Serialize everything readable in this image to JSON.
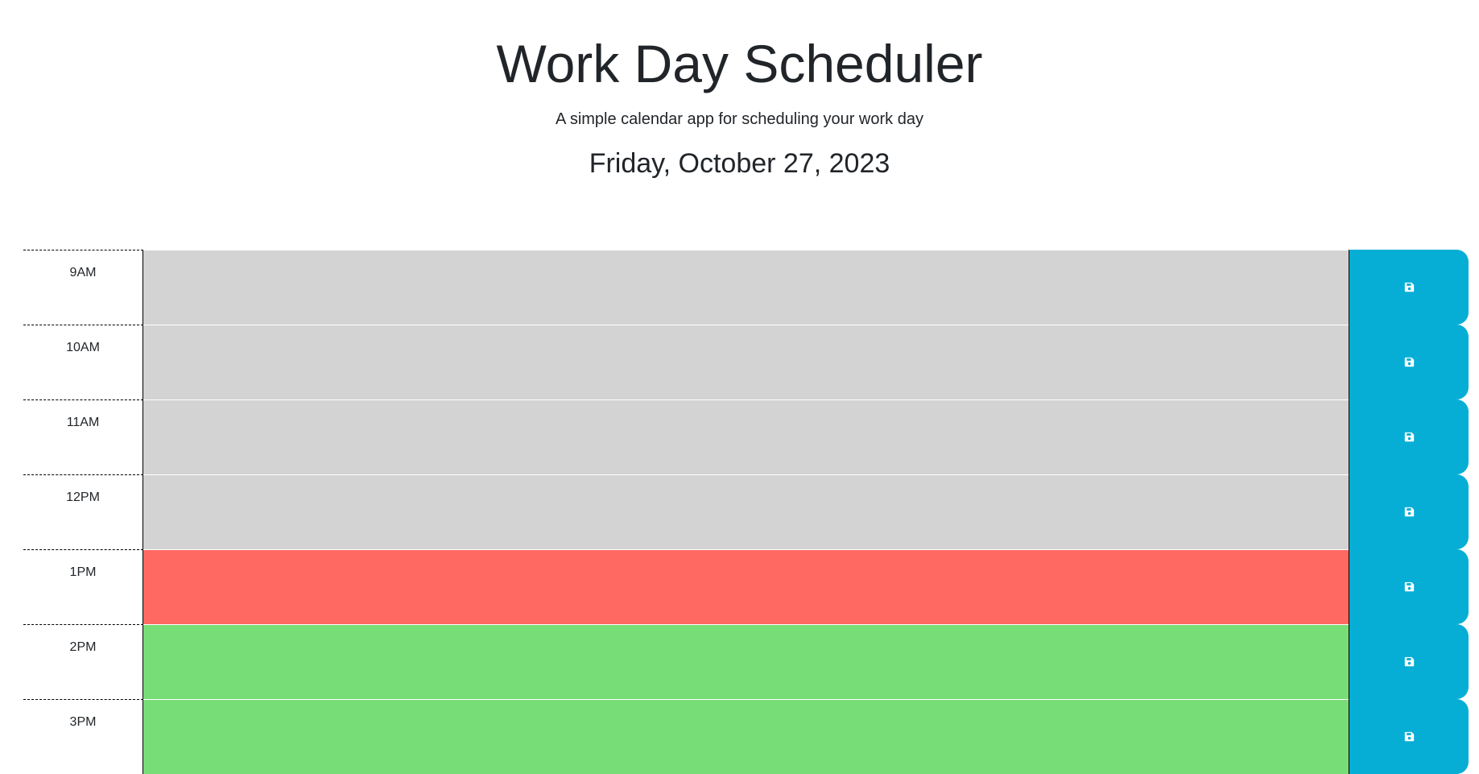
{
  "header": {
    "title": "Work Day Scheduler",
    "subtitle": "A simple calendar app for scheduling your work day",
    "current_day": "Friday, October 27, 2023"
  },
  "colors": {
    "past": "#d3d3d3",
    "present": "#ff6961",
    "future": "#77dd77",
    "save_button": "#06aed5"
  },
  "time_blocks": [
    {
      "hour": "9AM",
      "state": "past",
      "text": "",
      "save_icon": "save-icon"
    },
    {
      "hour": "10AM",
      "state": "past",
      "text": "",
      "save_icon": "save-icon"
    },
    {
      "hour": "11AM",
      "state": "past",
      "text": "",
      "save_icon": "save-icon"
    },
    {
      "hour": "12PM",
      "state": "past",
      "text": "",
      "save_icon": "save-icon"
    },
    {
      "hour": "1PM",
      "state": "present",
      "text": "",
      "save_icon": "save-icon"
    },
    {
      "hour": "2PM",
      "state": "future",
      "text": "",
      "save_icon": "save-icon"
    },
    {
      "hour": "3PM",
      "state": "future",
      "text": "",
      "save_icon": "save-icon"
    }
  ]
}
